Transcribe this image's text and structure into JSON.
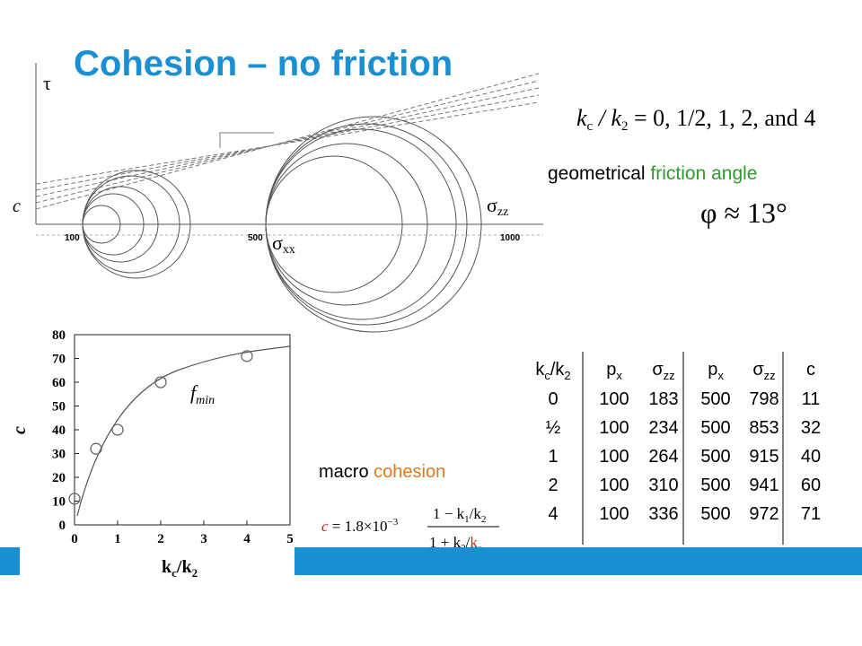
{
  "title": "Cohesion – no friction",
  "mohr": {
    "tau": "τ",
    "c": "c",
    "szz": [
      "σ",
      "zz"
    ],
    "sxx": [
      "σ",
      "xx"
    ],
    "ticks": [
      "100",
      "500",
      "1000"
    ]
  },
  "range_equation": [
    "k",
    "c",
    " / k",
    "2",
    " = 0, 1/2, 1, 2, and 4"
  ],
  "friction": {
    "lead": "geometrical",
    "colored": "friction angle",
    "equation": "φ ≈ 13°"
  },
  "plot": {
    "xlim": [
      0,
      5
    ],
    "ylim": [
      0,
      80
    ],
    "xticks": [
      0,
      1,
      2,
      3,
      4,
      5
    ],
    "yticks": [
      0,
      10,
      20,
      30,
      40,
      50,
      60,
      70,
      80
    ],
    "ylabel": "c",
    "xlabel": [
      "k",
      "c",
      "/k",
      "2"
    ],
    "curve_label": [
      "f",
      "min"
    ],
    "x": [
      0,
      0.5,
      1,
      2,
      4
    ],
    "y": [
      11,
      32,
      40,
      60,
      71
    ]
  },
  "macro": {
    "lead": "macro",
    "colored": "cohesion",
    "formula": [
      "c",
      " = 1.8×10",
      "−3",
      "1 − k",
      "1",
      "/k",
      "2",
      "1 + k",
      "2",
      "/",
      "k",
      "c"
    ]
  },
  "table": {
    "header": [
      [
        "k",
        "c",
        "/k",
        "2"
      ],
      [
        "p",
        "x"
      ],
      [
        "σ",
        "zz"
      ],
      [
        "p",
        "x"
      ],
      [
        "σ",
        "zz"
      ],
      [
        "c"
      ]
    ],
    "rows": [
      [
        "0",
        "100",
        "183",
        "500",
        "798",
        "11"
      ],
      [
        "½",
        "100",
        "234",
        "500",
        "853",
        "32"
      ],
      [
        "1",
        "100",
        "264",
        "500",
        "915",
        "40"
      ],
      [
        "2",
        "100",
        "310",
        "500",
        "941",
        "60"
      ],
      [
        "4",
        "100",
        "336",
        "500",
        "972",
        "71"
      ]
    ]
  }
}
